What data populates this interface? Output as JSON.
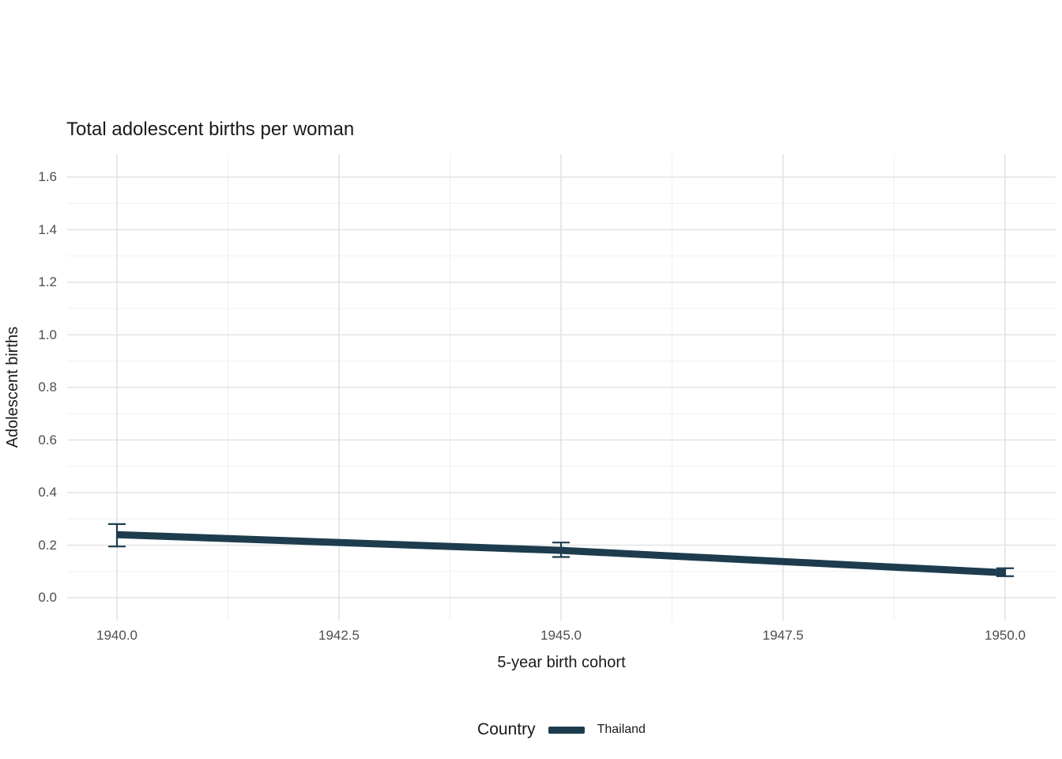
{
  "title": "Total adolescent births per woman",
  "axes": {
    "x_label": "5-year birth cohort",
    "y_label": "Adolescent births",
    "x_ticks": [
      "1940.0",
      "1942.5",
      "1945.0",
      "1947.5",
      "1950.0"
    ],
    "y_ticks": [
      "0.0",
      "0.2",
      "0.4",
      "0.6",
      "0.8",
      "1.0",
      "1.2",
      "1.4",
      "1.6"
    ]
  },
  "legend": {
    "title": "Country",
    "entries": [
      {
        "label": "Thailand",
        "color": "#1d3c4e"
      }
    ]
  },
  "colors": {
    "series": "#1d3c4e",
    "grid_major": "#e3e3e3",
    "grid_minor": "#f0f0f0",
    "title_text": "#1a1a1a",
    "tick_text": "#4d4d4d"
  },
  "chart_data": {
    "type": "line",
    "title": "Total adolescent births per woman",
    "xlabel": "5-year birth cohort",
    "ylabel": "Adolescent births",
    "xlim": [
      1939.4,
      1950.6
    ],
    "ylim": [
      0,
      1.6
    ],
    "x_ticks": [
      1940.0,
      1942.5,
      1945.0,
      1947.5,
      1950.0
    ],
    "y_ticks": [
      0.0,
      0.2,
      0.4,
      0.6,
      0.8,
      1.0,
      1.2,
      1.4,
      1.6
    ],
    "grid": true,
    "legend_position": "bottom",
    "series": [
      {
        "name": "Thailand",
        "color": "#1d3c4e",
        "x": [
          1940,
          1945,
          1950
        ],
        "y": [
          0.24,
          0.18,
          0.095
        ],
        "y_err_low": [
          0.195,
          0.155,
          0.082
        ],
        "y_err_high": [
          0.28,
          0.21,
          0.112
        ]
      }
    ]
  }
}
